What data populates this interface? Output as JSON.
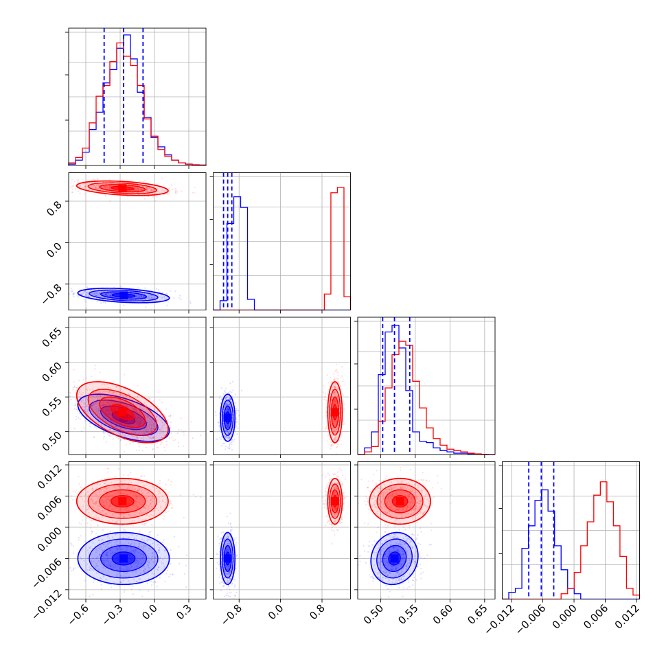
{
  "colors": {
    "series_a": "#0000ff",
    "series_b": "#ff0000",
    "grid": "#b0b0b0",
    "quantile_line": "#0000ff"
  },
  "chart_data": {
    "type": "corner",
    "params": [
      {
        "range": [
          -0.75,
          0.45
        ],
        "ticks": [
          -0.6,
          -0.3,
          0.0,
          0.3
        ],
        "tick_labels": [
          "−0.6",
          "−0.3",
          "0.0",
          "0.3"
        ]
      },
      {
        "range": [
          -1.3,
          1.35
        ],
        "ticks": [
          -0.8,
          0.0,
          0.8
        ],
        "tick_labels": [
          "−0.8",
          "0.0",
          "0.8"
        ]
      },
      {
        "range": [
          0.467,
          0.665
        ],
        "ticks": [
          0.5,
          0.55,
          0.6,
          0.65
        ],
        "tick_labels": [
          "0.50",
          "0.55",
          "0.60",
          "0.65"
        ]
      },
      {
        "range": [
          -0.0138,
          0.0126
        ],
        "ticks": [
          -0.012,
          -0.006,
          0.0,
          0.006,
          0.012
        ],
        "tick_labels": [
          "−0.012",
          "−0.006",
          "0.000",
          "0.006",
          "0.012"
        ]
      }
    ],
    "series": [
      {
        "color": "#0000ff",
        "mean": [
          -0.27,
          -1.02,
          0.52,
          -0.006
        ],
        "sd": [
          0.2,
          0.07,
          0.017,
          0.0025
        ],
        "corr": {
          "0-1": -0.35,
          "0-2": -0.55,
          "2-3": 0.1
        }
      },
      {
        "color": "#ff0000",
        "mean": [
          -0.28,
          1.05,
          0.528,
          0.005
        ],
        "sd": [
          0.2,
          0.07,
          0.022,
          0.0022
        ],
        "corr": {
          "0-1": -0.35,
          "0-2": -0.55
        }
      }
    ],
    "quantiles": [
      [
        -0.44,
        -0.27,
        -0.1
      ],
      [
        -1.1,
        -1.02,
        -0.94
      ],
      [
        0.503,
        0.52,
        0.542
      ],
      [
        -0.0087,
        -0.0063,
        -0.0039
      ]
    ],
    "histograms": [
      {
        "series": [
          {
            "values": [
              0.01,
              0.04,
              0.1,
              0.27,
              0.4,
              0.62,
              0.72,
              0.88,
              0.98,
              0.8,
              0.55,
              0.36,
              0.21,
              0.14,
              0.08,
              0.04,
              0.02,
              0.01,
              0.005,
              0.003
            ]
          },
          {
            "values": [
              0.02,
              0.06,
              0.13,
              0.32,
              0.52,
              0.6,
              0.78,
              0.92,
              0.82,
              0.75,
              0.6,
              0.35,
              0.22,
              0.12,
              0.07,
              0.04,
              0.02,
              0.01,
              0.005,
              0.003
            ]
          }
        ]
      },
      {
        "series": [
          {
            "values": [
              0.0,
              0.07,
              0.65,
              0.85,
              0.77,
              0.08,
              0.0,
              0.0,
              0.0,
              0.0,
              0.0,
              0.0,
              0.0,
              0.0,
              0.0,
              0.0,
              0.0,
              0.0,
              0.0,
              0.0
            ]
          },
          {
            "values": [
              0.0,
              0.0,
              0.0,
              0.0,
              0.0,
              0.0,
              0.0,
              0.0,
              0.0,
              0.0,
              0.0,
              0.0,
              0.0,
              0.0,
              0.0,
              0.0,
              0.0,
              0.12,
              0.88,
              0.92,
              0.1
            ]
          }
        ]
      },
      {
        "series": [
          {
            "values": [
              0.0,
              0.05,
              0.17,
              0.6,
              0.92,
              0.97,
              0.8,
              0.48,
              0.17,
              0.1,
              0.09,
              0.05,
              0.03,
              0.02,
              0.01,
              0.01,
              0.005,
              0.002,
              0.0,
              0.0
            ]
          },
          {
            "values": [
              0.0,
              0.02,
              0.06,
              0.25,
              0.5,
              0.75,
              0.85,
              0.82,
              0.55,
              0.35,
              0.2,
              0.12,
              0.07,
              0.04,
              0.03,
              0.02,
              0.01,
              0.005,
              0.002,
              0.0
            ]
          }
        ]
      },
      {
        "series": [
          {
            "values": [
              0.0,
              0.05,
              0.08,
              0.38,
              0.55,
              0.74,
              0.82,
              0.66,
              0.4,
              0.22,
              0.08,
              0.04,
              0.0,
              0.0,
              0.0,
              0.0,
              0.0,
              0.0,
              0.0,
              0.0,
              0.0
            ]
          },
          {
            "values": [
              0.0,
              0.0,
              0.0,
              0.0,
              0.0,
              0.0,
              0.0,
              0.0,
              0.0,
              0.04,
              0.08,
              0.2,
              0.4,
              0.58,
              0.78,
              0.88,
              0.73,
              0.55,
              0.32,
              0.08,
              0.03
            ]
          }
        ]
      }
    ]
  }
}
